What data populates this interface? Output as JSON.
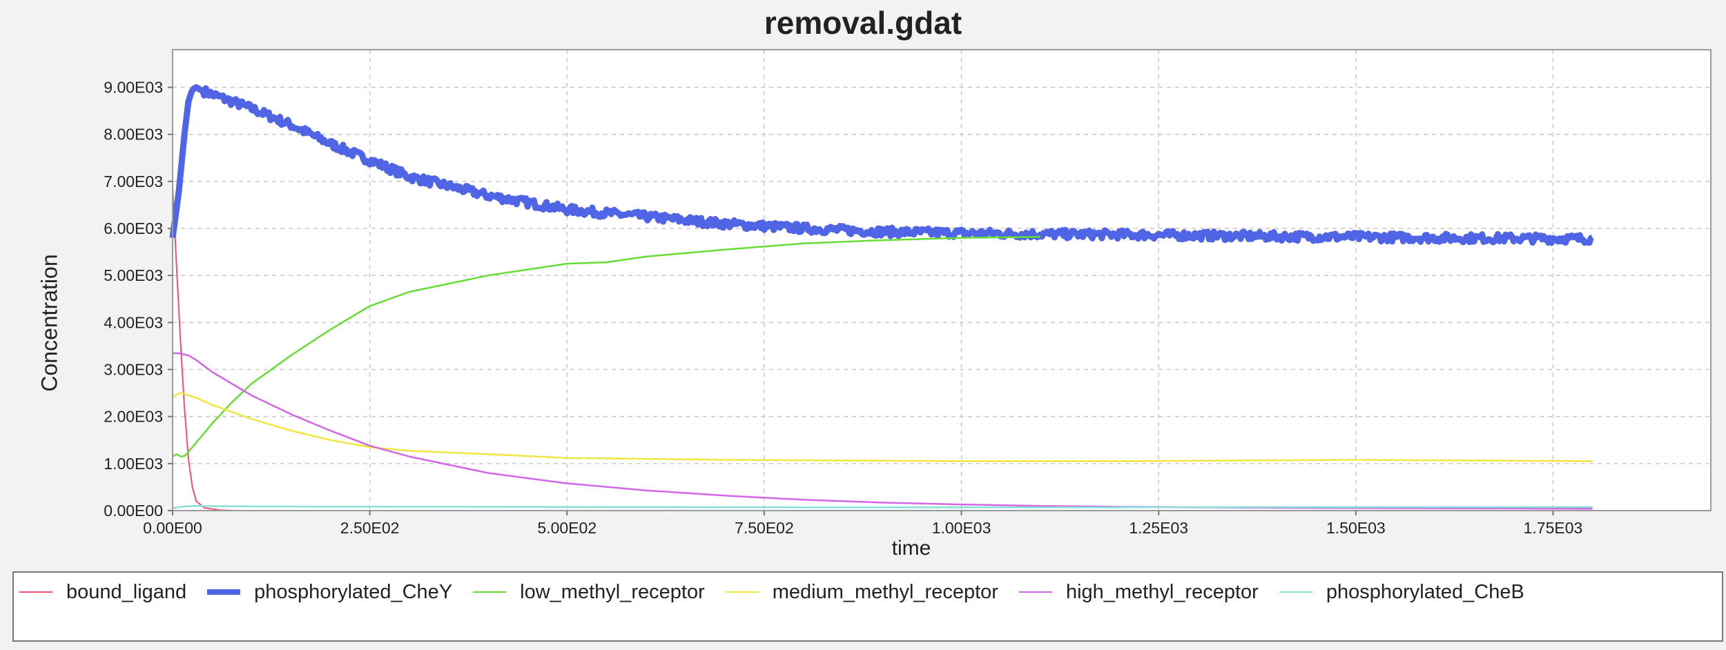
{
  "chart_data": {
    "type": "line",
    "title": "removal.gdat",
    "xlabel": "time",
    "ylabel": "Concentration",
    "xlim": [
      0,
      1950
    ],
    "ylim": [
      0,
      9800
    ],
    "x_ticks": [
      0,
      250,
      500,
      750,
      1000,
      1250,
      1500,
      1750
    ],
    "x_tick_labels": [
      "0.00E00",
      "2.50E02",
      "5.00E02",
      "7.50E02",
      "1.00E03",
      "1.25E03",
      "1.50E03",
      "1.75E03"
    ],
    "y_ticks": [
      0,
      1000,
      2000,
      3000,
      4000,
      5000,
      6000,
      7000,
      8000,
      9000
    ],
    "y_tick_labels": [
      "0.00E00",
      "1.00E03",
      "2.00E03",
      "3.00E03",
      "4.00E03",
      "5.00E03",
      "6.00E03",
      "7.00E03",
      "8.00E03",
      "9.00E03"
    ],
    "grid": true,
    "legend_position": "bottom",
    "series": [
      {
        "name": "bound_ligand",
        "color": "#f0506e",
        "width": 2,
        "noisy": false,
        "x": [
          0,
          5,
          10,
          15,
          20,
          25,
          30,
          40,
          60,
          80,
          100,
          1800
        ],
        "values": [
          6900,
          5200,
          3600,
          2200,
          1100,
          500,
          200,
          60,
          10,
          0,
          0,
          0
        ]
      },
      {
        "name": "phosphorylated_CheY",
        "color": "#5064e6",
        "width": 9,
        "noisy": true,
        "x": [
          0,
          8,
          15,
          20,
          25,
          30,
          35,
          50,
          75,
          100,
          150,
          200,
          250,
          300,
          400,
          500,
          600,
          700,
          800,
          900,
          1000,
          1100,
          1200,
          1300,
          1400,
          1500,
          1600,
          1700,
          1800
        ],
        "values": [
          5800,
          6800,
          8000,
          8700,
          8950,
          9000,
          8950,
          8850,
          8700,
          8550,
          8200,
          7800,
          7450,
          7100,
          6700,
          6400,
          6250,
          6100,
          6000,
          5930,
          5900,
          5880,
          5870,
          5850,
          5830,
          5820,
          5800,
          5790,
          5780
        ]
      },
      {
        "name": "low_methyl_receptor",
        "color": "#66dd33",
        "width": 2.5,
        "noisy": false,
        "x": [
          0,
          5,
          10,
          15,
          20,
          30,
          50,
          75,
          100,
          150,
          200,
          250,
          300,
          400,
          500,
          550,
          600,
          700,
          800,
          900,
          1000,
          1050,
          1100
        ],
        "values": [
          1150,
          1200,
          1150,
          1160,
          1250,
          1450,
          1850,
          2300,
          2700,
          3300,
          3850,
          4350,
          4650,
          5000,
          5250,
          5280,
          5400,
          5550,
          5680,
          5750,
          5800,
          5810,
          5820
        ]
      },
      {
        "name": "medium_methyl_receptor",
        "color": "#f0e640",
        "width": 2.5,
        "noisy": false,
        "x": [
          0,
          5,
          10,
          15,
          20,
          30,
          50,
          75,
          100,
          150,
          200,
          250,
          300,
          400,
          500,
          600,
          700,
          800,
          900,
          1000,
          1100,
          1200,
          1300,
          1400,
          1500,
          1600,
          1700,
          1800
        ],
        "values": [
          2400,
          2470,
          2500,
          2480,
          2450,
          2400,
          2250,
          2100,
          1950,
          1700,
          1500,
          1350,
          1270,
          1200,
          1120,
          1100,
          1080,
          1070,
          1060,
          1050,
          1050,
          1050,
          1060,
          1070,
          1080,
          1070,
          1060,
          1050
        ]
      },
      {
        "name": "high_methyl_receptor",
        "color": "#d266e6",
        "width": 2.5,
        "noisy": false,
        "x": [
          0,
          10,
          20,
          30,
          50,
          75,
          100,
          150,
          200,
          250,
          300,
          400,
          500,
          600,
          700,
          800,
          900,
          1000,
          1100,
          1200,
          1300,
          1400,
          1500,
          1600,
          1700,
          1800
        ],
        "values": [
          3350,
          3340,
          3300,
          3200,
          2950,
          2700,
          2450,
          2050,
          1700,
          1380,
          1150,
          800,
          580,
          430,
          320,
          230,
          170,
          130,
          100,
          80,
          70,
          60,
          55,
          50,
          45,
          40
        ]
      },
      {
        "name": "phosphorylated_CheB",
        "color": "#88e0d8",
        "width": 2.5,
        "noisy": false,
        "x": [
          0,
          10,
          20,
          30,
          50,
          100,
          200,
          400,
          600,
          800,
          1000,
          1200,
          1400,
          1600,
          1800
        ],
        "values": [
          50,
          80,
          95,
          100,
          95,
          90,
          85,
          80,
          75,
          70,
          70,
          70,
          75,
          75,
          75
        ]
      }
    ]
  }
}
